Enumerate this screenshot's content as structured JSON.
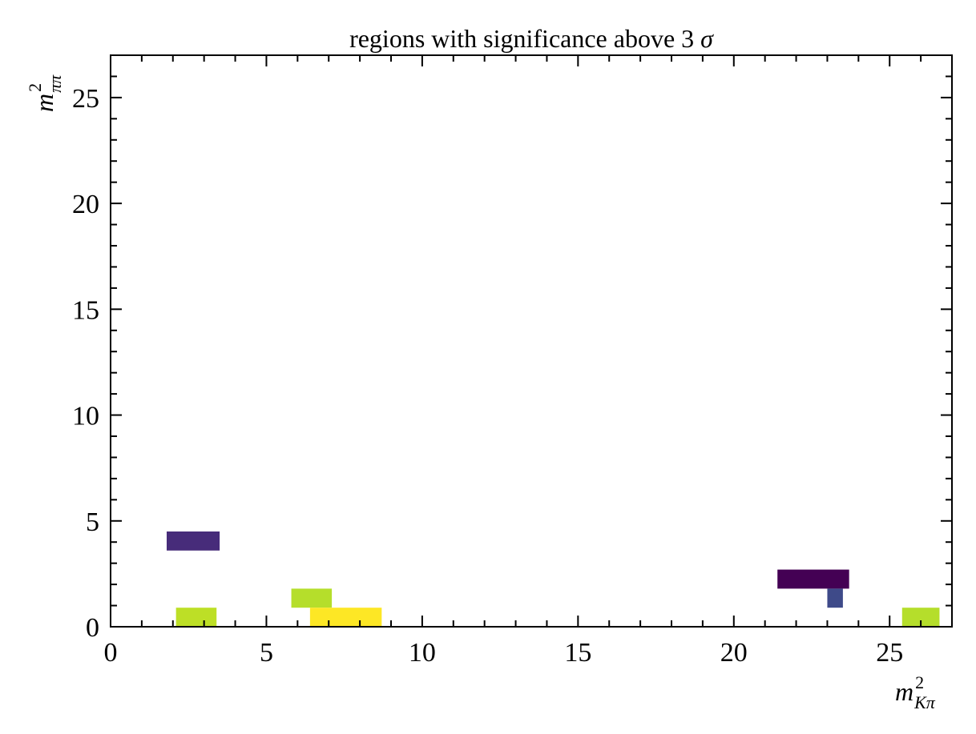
{
  "chart_data": {
    "type": "heatmap",
    "title": "regions with significance above 3",
    "title_symbol": "σ",
    "xlabel": {
      "base": "m",
      "sup": "2",
      "sub": "Kπ"
    },
    "ylabel": {
      "base": "m",
      "sup": "2",
      "sub": "ππ"
    },
    "xlim": [
      0,
      27
    ],
    "ylim": [
      0,
      27
    ],
    "xticks": [
      0,
      5,
      10,
      15,
      20,
      25
    ],
    "yticks": [
      0,
      5,
      10,
      15,
      20,
      25
    ],
    "xtick_labels": [
      "0",
      "5",
      "10",
      "15",
      "20",
      "25"
    ],
    "ytick_labels": [
      "0",
      "5",
      "10",
      "15",
      "20",
      "25"
    ],
    "minor_tick_step": 1,
    "grid": false,
    "colormap": "viridis",
    "cells": [
      {
        "x0": 1.8,
        "x1": 3.5,
        "y0": 3.6,
        "y1": 4.5,
        "color": "#472c7a"
      },
      {
        "x0": 2.1,
        "x1": 3.4,
        "y0": 0.0,
        "y1": 0.9,
        "color": "#bddf26"
      },
      {
        "x0": 5.8,
        "x1": 7.1,
        "y0": 0.9,
        "y1": 1.8,
        "color": "#b5de2b"
      },
      {
        "x0": 6.4,
        "x1": 8.7,
        "y0": 0.0,
        "y1": 0.9,
        "color": "#fde725"
      },
      {
        "x0": 21.4,
        "x1": 23.7,
        "y0": 1.8,
        "y1": 2.7,
        "color": "#440154"
      },
      {
        "x0": 23.0,
        "x1": 23.5,
        "y0": 0.9,
        "y1": 1.8,
        "color": "#3e4a89"
      },
      {
        "x0": 25.4,
        "x1": 26.6,
        "y0": 0.0,
        "y1": 0.9,
        "color": "#b5de2b"
      }
    ]
  }
}
